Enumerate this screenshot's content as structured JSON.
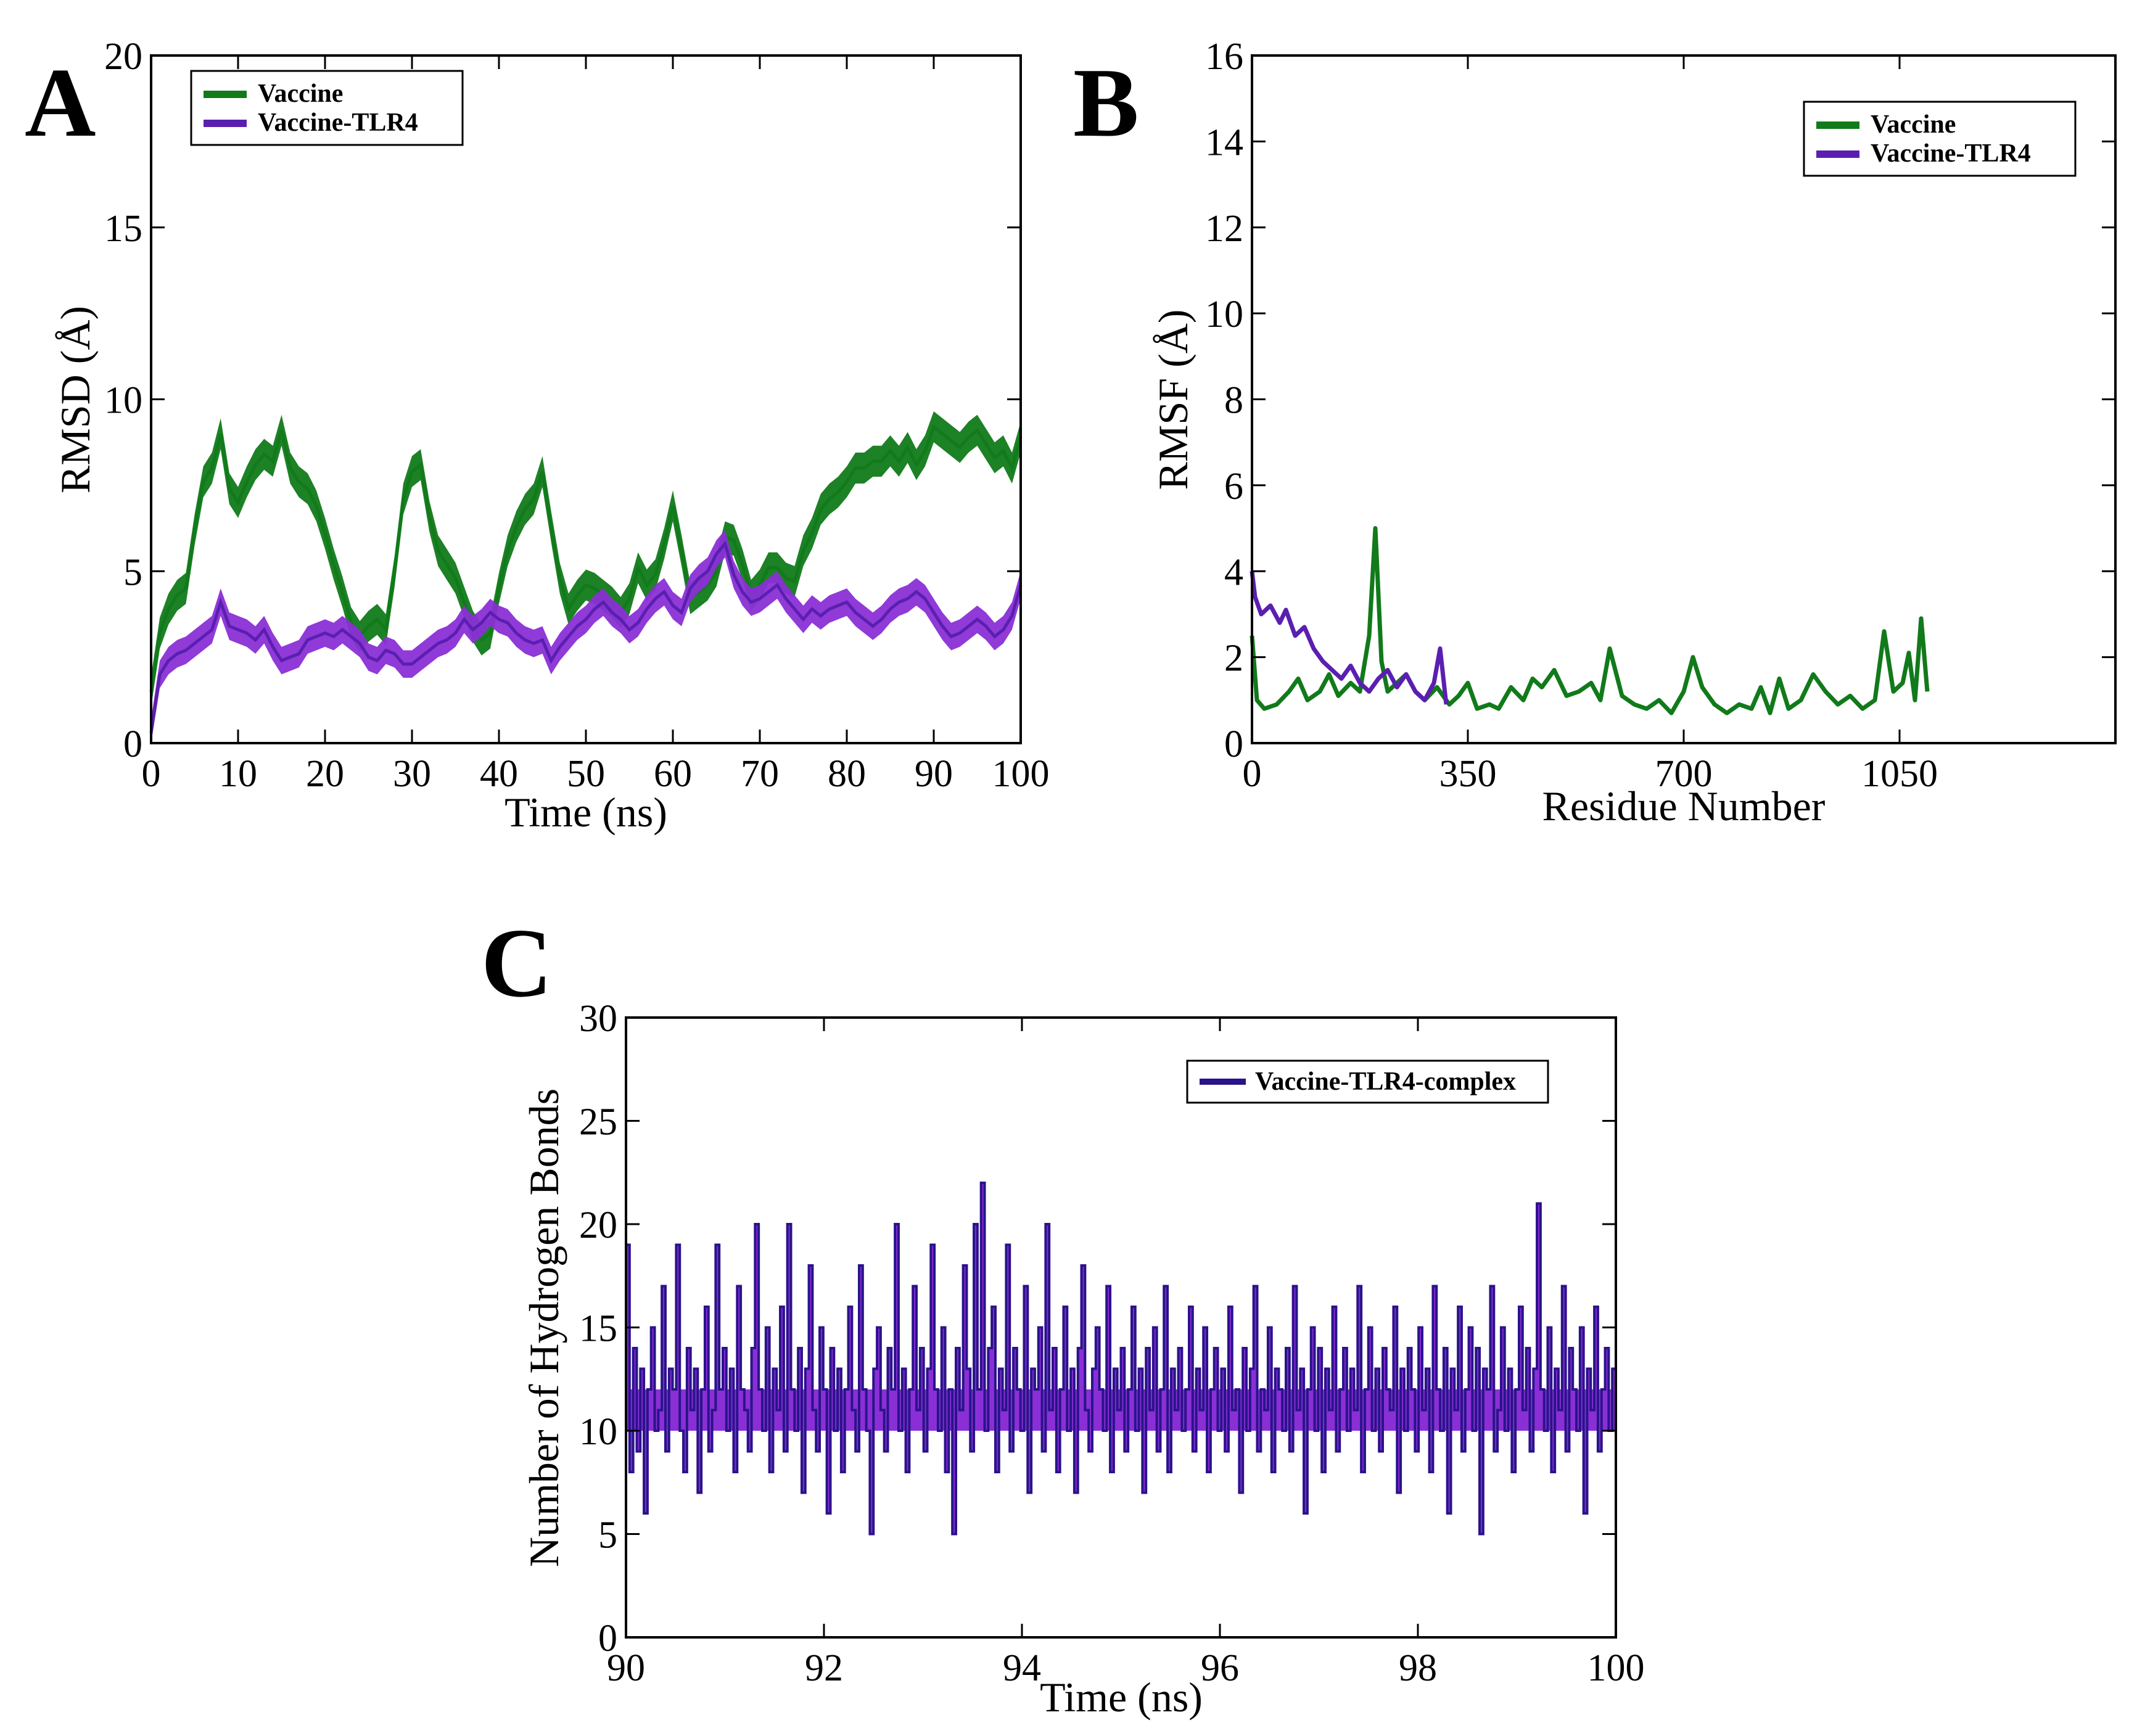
{
  "colors": {
    "vaccine": "#117a1a",
    "vaccine_tlr4": "#5a1fb0",
    "vaccine_tlr4_fill": "#8a2fd6",
    "hbond_line": "#2a138a",
    "hbond_fill": "#8a2fd6"
  },
  "chart_data": [
    {
      "panel": "A",
      "type": "line",
      "xlabel": "Time (ns)",
      "ylabel": "RMSD (Å)",
      "xlim": [
        0,
        100
      ],
      "ylim": [
        0,
        20
      ],
      "xticks": [
        0,
        10,
        20,
        30,
        40,
        50,
        60,
        70,
        80,
        90,
        100
      ],
      "xtick_labels": [
        "0",
        "10",
        "20",
        "30",
        "40",
        "50",
        "60",
        "70",
        "80",
        "90",
        "100"
      ],
      "yticks": [
        0,
        5,
        10,
        15,
        20
      ],
      "ytick_labels": [
        "0",
        "5",
        "10",
        "15",
        "20"
      ],
      "legend": [
        "Vaccine",
        "Vaccine-TLR4"
      ],
      "legend_position": "top-left",
      "series": [
        {
          "name": "Vaccine",
          "color": "#117a1a",
          "band": 0.45,
          "x": [
            0,
            1,
            2,
            3,
            4,
            5,
            6,
            7,
            8,
            9,
            10,
            11,
            12,
            13,
            14,
            15,
            16,
            17,
            18,
            19,
            20,
            21,
            22,
            23,
            24,
            25,
            26,
            27,
            28,
            29,
            30,
            31,
            32,
            33,
            34,
            35,
            36,
            37,
            38,
            39,
            40,
            41,
            42,
            43,
            44,
            45,
            46,
            47,
            48,
            49,
            50,
            51,
            52,
            53,
            54,
            55,
            56,
            57,
            58,
            59,
            60,
            61,
            62,
            63,
            64,
            65,
            66,
            67,
            68,
            69,
            70,
            71,
            72,
            73,
            74,
            75,
            76,
            77,
            78,
            79,
            80,
            81,
            82,
            83,
            84,
            85,
            86,
            87,
            88,
            89,
            90,
            91,
            92,
            93,
            94,
            95,
            96,
            97,
            98,
            99,
            100
          ],
          "values": [
            1.5,
            3.2,
            3.9,
            4.3,
            4.5,
            6.2,
            7.6,
            8.0,
            9.0,
            7.4,
            7.0,
            7.6,
            8.1,
            8.4,
            8.2,
            9.1,
            8.0,
            7.6,
            7.4,
            6.9,
            6.1,
            5.2,
            4.4,
            3.5,
            3.1,
            3.4,
            3.6,
            3.3,
            5.0,
            7.1,
            7.9,
            8.1,
            6.6,
            5.6,
            5.2,
            4.8,
            4.1,
            3.4,
            3.0,
            3.2,
            4.5,
            5.6,
            6.3,
            6.8,
            7.1,
            7.9,
            6.3,
            4.8,
            3.9,
            4.3,
            4.6,
            4.5,
            4.3,
            4.1,
            3.8,
            4.2,
            5.1,
            4.6,
            4.9,
            5.8,
            6.9,
            5.6,
            4.2,
            4.4,
            4.6,
            5.0,
            6.0,
            5.9,
            5.2,
            4.3,
            4.6,
            5.1,
            5.1,
            4.8,
            4.7,
            5.6,
            6.1,
            6.8,
            7.1,
            7.3,
            7.6,
            8.0,
            8.0,
            8.2,
            8.2,
            8.5,
            8.2,
            8.6,
            8.1,
            8.5,
            9.2,
            9.0,
            8.8,
            8.6,
            8.9,
            9.1,
            8.7,
            8.3,
            8.5,
            8.0,
            8.9
          ]
        },
        {
          "name": "Vaccine-TLR4",
          "color": "#5a1fb0",
          "band": 0.4,
          "x": [
            0,
            1,
            2,
            3,
            4,
            5,
            6,
            7,
            8,
            9,
            10,
            11,
            12,
            13,
            14,
            15,
            16,
            17,
            18,
            19,
            20,
            21,
            22,
            23,
            24,
            25,
            26,
            27,
            28,
            29,
            30,
            31,
            32,
            33,
            34,
            35,
            36,
            37,
            38,
            39,
            40,
            41,
            42,
            43,
            44,
            45,
            46,
            47,
            48,
            49,
            50,
            51,
            52,
            53,
            54,
            55,
            56,
            57,
            58,
            59,
            60,
            61,
            62,
            63,
            64,
            65,
            66,
            67,
            68,
            69,
            70,
            71,
            72,
            73,
            74,
            75,
            76,
            77,
            78,
            79,
            80,
            81,
            82,
            83,
            84,
            85,
            86,
            87,
            88,
            89,
            90,
            91,
            92,
            93,
            94,
            95,
            96,
            97,
            98,
            99,
            100
          ],
          "values": [
            0.3,
            2.0,
            2.4,
            2.6,
            2.7,
            2.9,
            3.1,
            3.3,
            4.1,
            3.4,
            3.3,
            3.2,
            3.0,
            3.3,
            2.8,
            2.4,
            2.5,
            2.6,
            3.0,
            3.1,
            3.2,
            3.1,
            3.3,
            3.1,
            2.9,
            2.5,
            2.4,
            2.7,
            2.6,
            2.3,
            2.3,
            2.5,
            2.7,
            2.9,
            3.0,
            3.2,
            3.6,
            3.3,
            3.5,
            3.8,
            3.6,
            3.5,
            3.2,
            3.0,
            2.9,
            3.0,
            2.4,
            2.8,
            3.1,
            3.4,
            3.6,
            3.9,
            4.1,
            3.8,
            3.6,
            3.3,
            3.5,
            3.9,
            4.2,
            4.4,
            4.0,
            3.8,
            4.5,
            4.8,
            5.0,
            5.5,
            5.8,
            4.9,
            4.4,
            4.1,
            4.2,
            4.4,
            4.6,
            4.2,
            3.9,
            3.6,
            3.9,
            3.7,
            3.9,
            4.0,
            4.1,
            3.8,
            3.6,
            3.4,
            3.6,
            3.9,
            4.1,
            4.2,
            4.4,
            4.2,
            3.8,
            3.4,
            3.1,
            3.2,
            3.4,
            3.6,
            3.4,
            3.1,
            3.3,
            3.7,
            4.6
          ]
        }
      ]
    },
    {
      "panel": "B",
      "type": "line",
      "xlabel": "Residue Number",
      "ylabel": "RMSF (Å)",
      "xlim": [
        0,
        1400
      ],
      "ylim": [
        0,
        16
      ],
      "xticks": [
        0,
        350,
        700,
        1050
      ],
      "xtick_labels": [
        "0",
        "350",
        "700",
        "1050"
      ],
      "yticks": [
        0,
        2,
        4,
        6,
        8,
        10,
        12,
        14,
        16
      ],
      "ytick_labels": [
        "0",
        "2",
        "4",
        "6",
        "8",
        "10",
        "12",
        "14",
        "16"
      ],
      "legend": [
        "Vaccine",
        "Vaccine-TLR4"
      ],
      "legend_position": "top-right",
      "series": [
        {
          "name": "Vaccine",
          "color": "#117a1a",
          "x": [
            0,
            8,
            20,
            40,
            60,
            75,
            90,
            110,
            125,
            140,
            160,
            175,
            190,
            200,
            210,
            220,
            235,
            250,
            265,
            280,
            300,
            320,
            335,
            350,
            365,
            385,
            400,
            420,
            440,
            455,
            470,
            490,
            510,
            530,
            550,
            565,
            580,
            600,
            620,
            640,
            660,
            680,
            700,
            715,
            730,
            750,
            770,
            790,
            810,
            825,
            840,
            855,
            870,
            890,
            910,
            930,
            950,
            970,
            990,
            1010,
            1025,
            1040,
            1055,
            1065,
            1075,
            1085,
            1095
          ],
          "values": [
            2.5,
            1.0,
            0.8,
            0.9,
            1.2,
            1.5,
            1.0,
            1.2,
            1.6,
            1.1,
            1.4,
            1.2,
            2.5,
            5.0,
            1.9,
            1.2,
            1.4,
            1.6,
            1.2,
            1.0,
            1.3,
            0.9,
            1.1,
            1.4,
            0.8,
            0.9,
            0.8,
            1.3,
            1.0,
            1.5,
            1.3,
            1.7,
            1.1,
            1.2,
            1.4,
            1.0,
            2.2,
            1.1,
            0.9,
            0.8,
            1.0,
            0.7,
            1.2,
            2.0,
            1.3,
            0.9,
            0.7,
            0.9,
            0.8,
            1.3,
            0.7,
            1.5,
            0.8,
            1.0,
            1.6,
            1.2,
            0.9,
            1.1,
            0.8,
            1.0,
            2.6,
            1.2,
            1.4,
            2.1,
            1.0,
            2.9,
            1.2
          ]
        },
        {
          "name": "Vaccine-TLR4",
          "color": "#5a1fb0",
          "x": [
            0,
            5,
            15,
            30,
            45,
            55,
            70,
            85,
            100,
            115,
            130,
            145,
            160,
            175,
            190,
            205,
            220,
            235,
            250,
            265,
            280,
            295,
            305,
            315
          ],
          "values": [
            4.0,
            3.4,
            3.0,
            3.2,
            2.8,
            3.1,
            2.5,
            2.7,
            2.2,
            1.9,
            1.7,
            1.5,
            1.8,
            1.4,
            1.2,
            1.5,
            1.7,
            1.3,
            1.6,
            1.2,
            1.0,
            1.4,
            2.2,
            0.9
          ]
        }
      ]
    },
    {
      "panel": "C",
      "type": "line",
      "xlabel": "Time (ns)",
      "ylabel": "Number of Hydrogen Bonds",
      "xlim": [
        90,
        100
      ],
      "ylim": [
        0,
        30
      ],
      "xticks": [
        90,
        92,
        94,
        96,
        98,
        100
      ],
      "xtick_labels": [
        "90",
        "92",
        "94",
        "96",
        "98",
        "100"
      ],
      "yticks": [
        0,
        5,
        10,
        15,
        20,
        25,
        30
      ],
      "ytick_labels": [
        "0",
        "5",
        "10",
        "15",
        "20",
        "25",
        "30"
      ],
      "legend": [
        "Vaccine-TLR4-complex"
      ],
      "legend_position": "top-right",
      "series": [
        {
          "name": "Vaccine-TLR4-complex",
          "color": "#2a138a",
          "fill": "#8a2fd6",
          "x_start": 90,
          "x_end": 100,
          "values": [
            19,
            8,
            14,
            9,
            13,
            6,
            12,
            15,
            10,
            11,
            17,
            9,
            13,
            12,
            19,
            10,
            8,
            14,
            11,
            13,
            7,
            12,
            16,
            9,
            11,
            19,
            12,
            14,
            10,
            13,
            8,
            17,
            12,
            11,
            9,
            14,
            20,
            12,
            10,
            15,
            8,
            13,
            11,
            16,
            9,
            20,
            12,
            10,
            14,
            7,
            13,
            18,
            11,
            9,
            15,
            12,
            6,
            14,
            10,
            13,
            8,
            12,
            16,
            11,
            9,
            18,
            12,
            10,
            5,
            13,
            15,
            11,
            9,
            14,
            12,
            20,
            10,
            13,
            8,
            12,
            17,
            11,
            14,
            9,
            13,
            19,
            12,
            10,
            15,
            8,
            12,
            5,
            14,
            11,
            18,
            13,
            9,
            20,
            12,
            22,
            10,
            14,
            16,
            8,
            13,
            11,
            19,
            9,
            14,
            12,
            10,
            17,
            7,
            13,
            12,
            15,
            9,
            20,
            11,
            14,
            8,
            12,
            16,
            10,
            13,
            7,
            14,
            18,
            11,
            9,
            13,
            15,
            12,
            10,
            17,
            8,
            13,
            11,
            14,
            9,
            12,
            16,
            10,
            13,
            7,
            14,
            11,
            15,
            9,
            12,
            17,
            8,
            13,
            11,
            14,
            10,
            12,
            16,
            9,
            13,
            11,
            15,
            8,
            12,
            14,
            10,
            13,
            9,
            16,
            11,
            12,
            7,
            14,
            10,
            13,
            17,
            9,
            12,
            11,
            15,
            8,
            13,
            12,
            10,
            14,
            9,
            17,
            11,
            13,
            6,
            12,
            15,
            10,
            14,
            8,
            13,
            11,
            16,
            9,
            12,
            14,
            10,
            13,
            11,
            17,
            8,
            12,
            15,
            10,
            13,
            9,
            14,
            12,
            11,
            16,
            7,
            13,
            10,
            14,
            12,
            9,
            15,
            11,
            13,
            8,
            17,
            12,
            10,
            14,
            6,
            13,
            11,
            16,
            9,
            12,
            15,
            10,
            14,
            5,
            13,
            12,
            17,
            9,
            11,
            15,
            10,
            13,
            8,
            12,
            16,
            11,
            14,
            9,
            13,
            21,
            12,
            10,
            15,
            8,
            13,
            11,
            17,
            9,
            14,
            12,
            10,
            15,
            6,
            13,
            11,
            16,
            9,
            12,
            14,
            10,
            13,
            8
          ]
        }
      ]
    }
  ]
}
